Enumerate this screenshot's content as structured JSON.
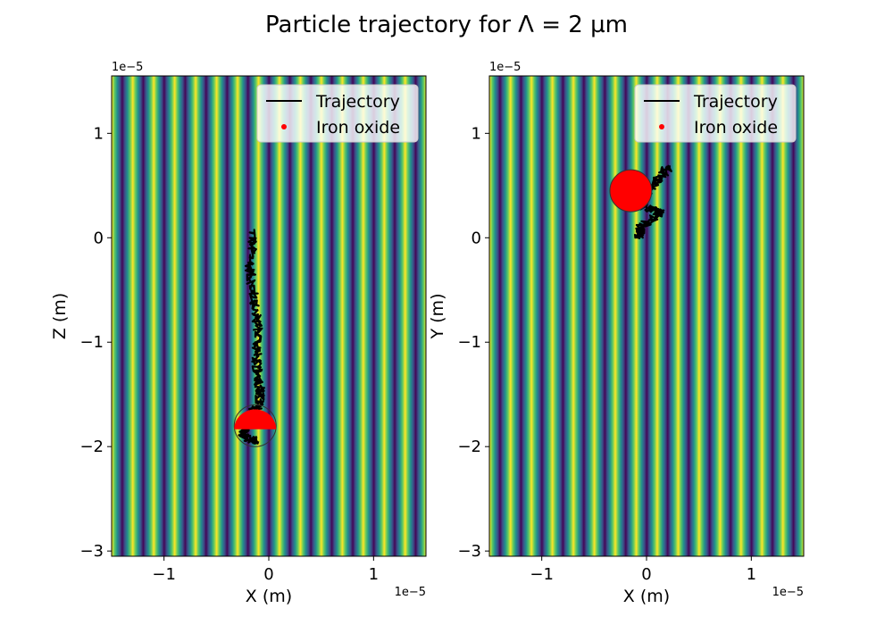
{
  "figure": {
    "title": "Particle trajectory for Λ = 2 µm"
  },
  "colors": {
    "fringe_stops": [
      "#440154",
      "#3b528b",
      "#21918c",
      "#5ec962",
      "#fde725"
    ],
    "trajectory": "#000000",
    "particle": "#ff0000",
    "outline": "#333333"
  },
  "chart_data": [
    {
      "type": "scatter",
      "background": "intensity fringes",
      "fringe_period": 2e-06,
      "xlabel": "X (m)",
      "ylabel": "Z (m)",
      "x_offset_label": "1e−5",
      "y_offset_label": "1e−5",
      "xlim": [
        -1.5e-05,
        1.5e-05
      ],
      "ylim": [
        -3.05e-05,
        1.55e-05
      ],
      "xticks": [
        -1e-05,
        0,
        1e-05
      ],
      "xtick_labels": [
        "−1",
        "0",
        "1"
      ],
      "yticks": [
        -3e-05,
        -2e-05,
        -1e-05,
        0,
        1e-05
      ],
      "ytick_labels": [
        "−3",
        "−2",
        "−1",
        "0",
        "1"
      ],
      "legend": {
        "position": "top-right",
        "entries": [
          "Trajectory",
          "Iron oxide"
        ]
      },
      "trajectory_anchors": [
        [
          -1.5e-06,
          5e-07
        ],
        [
          -1.8e-06,
          -3e-06
        ],
        [
          -1.4e-06,
          -6e-06
        ],
        [
          -1e-06,
          -9e-06
        ],
        [
          -1.2e-06,
          -1.2e-05
        ],
        [
          -8e-07,
          -1.45e-05
        ],
        [
          -1e-06,
          -1.6e-05
        ],
        [
          -2.2e-06,
          -1.75e-05
        ],
        [
          -2.5e-06,
          -1.9e-05
        ],
        [
          -1e-06,
          -1.95e-05
        ]
      ],
      "particle": {
        "center": [
          -1.3e-06,
          -1.8e-05
        ],
        "radius": 2e-06,
        "shape": "upper-half"
      }
    },
    {
      "type": "scatter",
      "background": "intensity fringes",
      "fringe_period": 2e-06,
      "xlabel": "X (m)",
      "ylabel": "Y (m)",
      "x_offset_label": "1e−5",
      "y_offset_label": "1e−5",
      "xlim": [
        -1.5e-05,
        1.5e-05
      ],
      "ylim": [
        -3.05e-05,
        1.55e-05
      ],
      "xticks": [
        -1e-05,
        0,
        1e-05
      ],
      "xtick_labels": [
        "−1",
        "0",
        "1"
      ],
      "yticks": [
        -3e-05,
        -2e-05,
        -1e-05,
        0,
        1e-05
      ],
      "ytick_labels": [
        "−3",
        "−2",
        "−1",
        "0",
        "1"
      ],
      "legend": {
        "position": "top-right",
        "entries": [
          "Trajectory",
          "Iron oxide"
        ]
      },
      "trajectory_anchors": [
        [
          2.2e-06,
          6.8e-06
        ],
        [
          1e-06,
          5.5e-06
        ],
        [
          -1e-06,
          3e-06
        ],
        [
          1.5e-06,
          2.5e-06
        ],
        [
          -5e-07,
          1e-06
        ],
        [
          -8e-07,
          0.0
        ]
      ],
      "particle": {
        "center": [
          -1.5e-06,
          4.5e-06
        ],
        "radius": 2e-06,
        "shape": "full"
      }
    }
  ]
}
